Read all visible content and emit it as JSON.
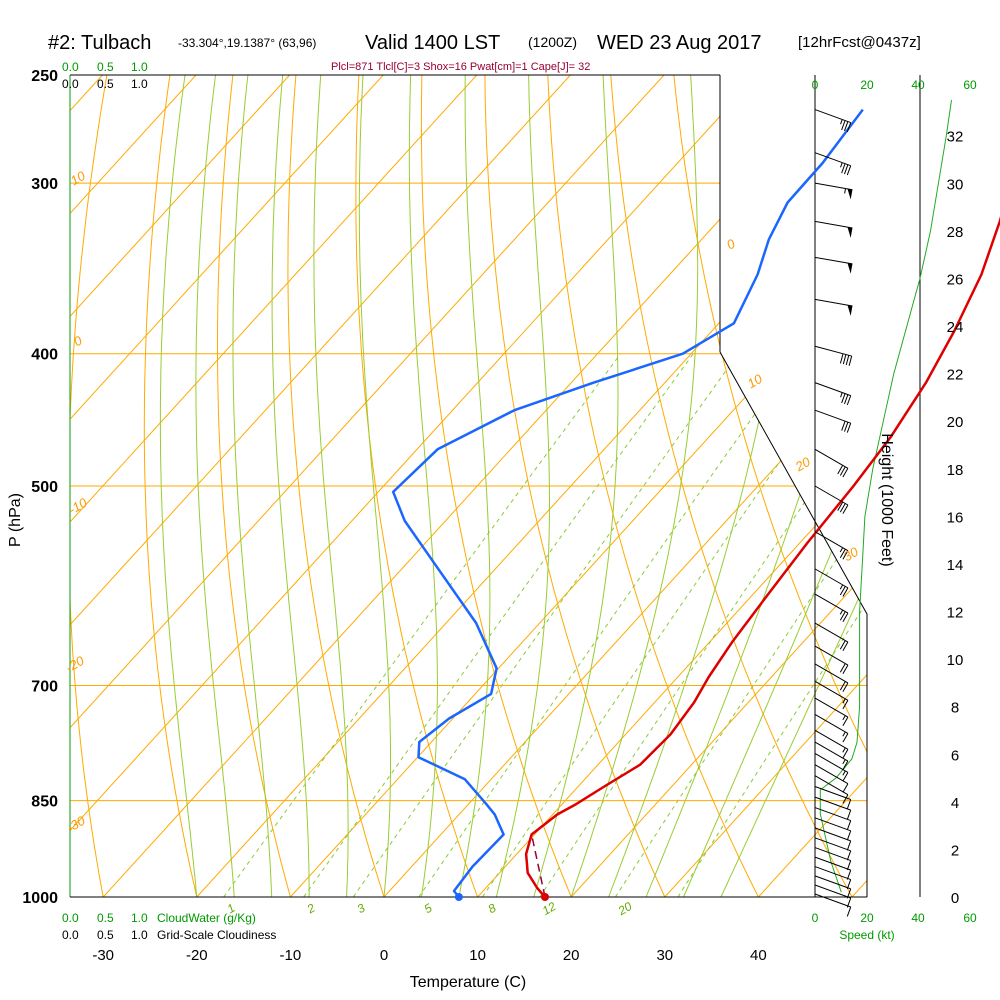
{
  "header": {
    "station": "#2: Tulbach",
    "coords": "-33.304°,19.1387° (63,96)",
    "valid": "Valid 1400 LST",
    "zulu": "(1200Z)",
    "date": "WED 23 Aug 2017",
    "forecast": "[12hrFcst@0437z]",
    "params": "Plcl=871 Tlcl[C]=3 Shox=16 Pwat[cm]=1 Cape[J]= 32"
  },
  "chart_data": {
    "type": "line",
    "title": "#2: Tulbach",
    "xlabel": "Temperature (C)",
    "ylabel": "P (hPa)",
    "xlim": [
      -34,
      36
    ],
    "ylim_pressure": [
      1000,
      250
    ],
    "x_ticks": [
      -30,
      -20,
      -10,
      0,
      10,
      20,
      30,
      40
    ],
    "pressure_ticks": [
      250,
      300,
      400,
      500,
      700,
      850,
      1000
    ],
    "isotherm_labels": [
      "10",
      "0",
      "-10",
      "-20",
      "-30",
      "0",
      "10",
      "20",
      "30"
    ],
    "mixing_ratio_labels": [
      "1",
      "2",
      "3",
      "5",
      "8",
      "12",
      "20"
    ],
    "height_axis": {
      "label": "Height (1000 Feet)",
      "ticks": [
        0,
        2,
        4,
        6,
        8,
        10,
        12,
        14,
        16,
        18,
        20,
        22,
        24,
        26,
        28,
        30,
        32
      ]
    },
    "cloud_axis": {
      "top_green": [
        "0.0",
        "0.5",
        "1.0"
      ],
      "top_black": [
        "0.0",
        "0.5",
        "1.0"
      ],
      "bottom_green": [
        "0.0",
        "0.5",
        "1.0"
      ],
      "bottom_black": [
        "0.0",
        "0.5",
        "1.0"
      ],
      "green_label": "CloudWater (g/Kg)",
      "black_label": "Grid-Scale Cloudiness"
    },
    "speed_axis": {
      "label": "Speed (kt)",
      "ticks": [
        "0",
        "20",
        "40",
        "60"
      ]
    },
    "series": [
      {
        "name": "Temperature",
        "color": "#dd0000",
        "points": [
          [
            17.2,
            1000
          ],
          [
            15.5,
            985
          ],
          [
            13.0,
            960
          ],
          [
            11.0,
            930
          ],
          [
            9.7,
            900
          ],
          [
            10.5,
            870
          ],
          [
            11.5,
            855
          ],
          [
            12.8,
            830
          ],
          [
            14.5,
            800
          ],
          [
            14.8,
            760
          ],
          [
            14.2,
            720
          ],
          [
            13.3,
            690
          ],
          [
            12.4,
            650
          ],
          [
            11.6,
            600
          ],
          [
            10.8,
            550
          ],
          [
            10.2,
            500
          ],
          [
            9.4,
            460
          ],
          [
            7.9,
            420
          ],
          [
            5.9,
            385
          ],
          [
            3.3,
            350
          ],
          [
            0.1,
            320
          ],
          [
            -3.8,
            290
          ],
          [
            -7.0,
            265
          ]
        ]
      },
      {
        "name": "Dewpoint",
        "color": "#1a66ff",
        "points": [
          [
            8.0,
            1000
          ],
          [
            6.9,
            990
          ],
          [
            6.5,
            950
          ],
          [
            6.7,
            900
          ],
          [
            3.8,
            870
          ],
          [
            1.9,
            855
          ],
          [
            -2.8,
            820
          ],
          [
            -9.9,
            790
          ],
          [
            -11.3,
            770
          ],
          [
            -10.4,
            740
          ],
          [
            -8.3,
            710
          ],
          [
            -10.2,
            680
          ],
          [
            -16.8,
            630
          ],
          [
            -27.0,
            570
          ],
          [
            -34.4,
            530
          ],
          [
            -38.4,
            505
          ],
          [
            -37.8,
            470
          ],
          [
            -33.4,
            440
          ],
          [
            -27.6,
            420
          ],
          [
            -20.9,
            400
          ],
          [
            -18.4,
            380
          ],
          [
            -20.6,
            350
          ],
          [
            -22.8,
            330
          ],
          [
            -24.4,
            310
          ],
          [
            -24.5,
            290
          ],
          [
            -25.4,
            265
          ]
        ]
      },
      {
        "name": "Parcel",
        "color": "#990033",
        "points": [
          [
            17.2,
            1000
          ],
          [
            9.7,
            900
          ]
        ]
      }
    ],
    "surface_temperature_point": [
      17.2,
      1000
    ],
    "surface_dewpoint_point": [
      8.0,
      1000
    ],
    "wind_barbs": [
      {
        "p": 265,
        "dir": 290,
        "spd": 35
      },
      {
        "p": 285,
        "dir": 290,
        "spd": 35
      },
      {
        "p": 300,
        "dir": 280,
        "spd": 55
      },
      {
        "p": 320,
        "dir": 280,
        "spd": 50
      },
      {
        "p": 340,
        "dir": 280,
        "spd": 50
      },
      {
        "p": 365,
        "dir": 280,
        "spd": 50
      },
      {
        "p": 395,
        "dir": 285,
        "spd": 40
      },
      {
        "p": 420,
        "dir": 290,
        "spd": 35
      },
      {
        "p": 440,
        "dir": 290,
        "spd": 30
      },
      {
        "p": 470,
        "dir": 300,
        "spd": 30
      },
      {
        "p": 500,
        "dir": 300,
        "spd": 30
      },
      {
        "p": 540,
        "dir": 300,
        "spd": 25
      },
      {
        "p": 575,
        "dir": 300,
        "spd": 25
      },
      {
        "p": 600,
        "dir": 300,
        "spd": 25
      },
      {
        "p": 630,
        "dir": 300,
        "spd": 20
      },
      {
        "p": 655,
        "dir": 300,
        "spd": 20
      },
      {
        "p": 675,
        "dir": 300,
        "spd": 20
      },
      {
        "p": 695,
        "dir": 300,
        "spd": 15
      },
      {
        "p": 715,
        "dir": 300,
        "spd": 15
      },
      {
        "p": 735,
        "dir": 300,
        "spd": 15
      },
      {
        "p": 755,
        "dir": 300,
        "spd": 15
      },
      {
        "p": 770,
        "dir": 300,
        "spd": 15
      },
      {
        "p": 785,
        "dir": 300,
        "spd": 15
      },
      {
        "p": 800,
        "dir": 300,
        "spd": 10
      },
      {
        "p": 815,
        "dir": 300,
        "spd": 10
      },
      {
        "p": 830,
        "dir": 290,
        "spd": 10
      },
      {
        "p": 845,
        "dir": 290,
        "spd": 10
      },
      {
        "p": 860,
        "dir": 290,
        "spd": 10
      },
      {
        "p": 875,
        "dir": 290,
        "spd": 10
      },
      {
        "p": 890,
        "dir": 290,
        "spd": 10
      },
      {
        "p": 905,
        "dir": 290,
        "spd": 10
      },
      {
        "p": 920,
        "dir": 290,
        "spd": 10
      },
      {
        "p": 935,
        "dir": 290,
        "spd": 10
      },
      {
        "p": 950,
        "dir": 290,
        "spd": 10
      },
      {
        "p": 965,
        "dir": 290,
        "spd": 10
      },
      {
        "p": 980,
        "dir": 290,
        "spd": 10
      },
      {
        "p": 995,
        "dir": 290,
        "spd": 10
      }
    ],
    "wind_speed_profile": [
      [
        10,
        0.2
      ],
      [
        6,
        1.5
      ],
      [
        2,
        3.5
      ],
      [
        2,
        4.5
      ],
      [
        8,
        5.0
      ],
      [
        14,
        5.8
      ],
      [
        16,
        6.5
      ],
      [
        17,
        8.0
      ],
      [
        17,
        10.0
      ],
      [
        17,
        12.0
      ],
      [
        18,
        14.0
      ],
      [
        19,
        16.0
      ],
      [
        22,
        18.0
      ],
      [
        26,
        20.0
      ],
      [
        30,
        22.0
      ],
      [
        35,
        24.0
      ],
      [
        40,
        26.0
      ],
      [
        44,
        28.0
      ],
      [
        47,
        30.0
      ],
      [
        50,
        32.0
      ],
      [
        52,
        33.5
      ]
    ]
  }
}
